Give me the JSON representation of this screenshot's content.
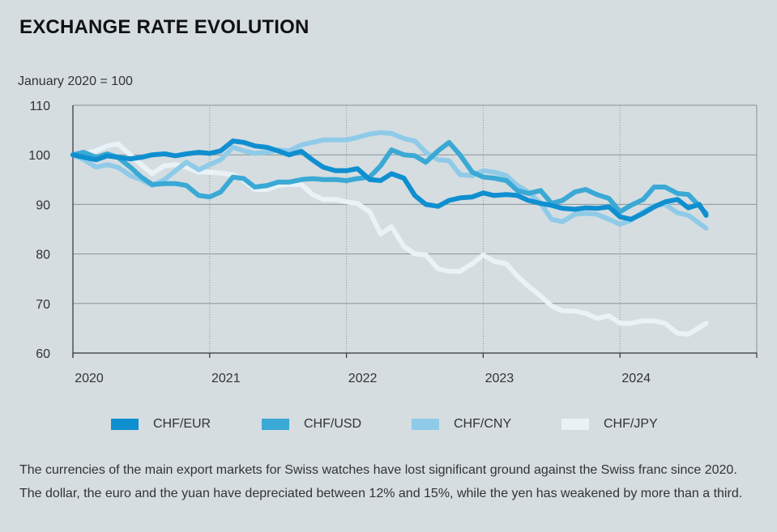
{
  "chart_data": {
    "type": "line",
    "title": "EXCHANGE RATE EVOLUTION",
    "ylabel": "January 2020 = 100",
    "xlabel": "",
    "xlim": [
      2020.0,
      2025.0
    ],
    "ylim": [
      60,
      110
    ],
    "yticks": [
      60,
      70,
      80,
      90,
      100,
      110
    ],
    "xticks": [
      {
        "value": 2020,
        "label": "2020"
      },
      {
        "value": 2021,
        "label": "2021"
      },
      {
        "value": 2022,
        "label": "2022"
      },
      {
        "value": 2023,
        "label": "2023"
      },
      {
        "value": 2024,
        "label": "2024"
      }
    ],
    "grid": true,
    "legend_position": "bottom",
    "series": [
      {
        "name": "CHF/EUR",
        "color": "#0f8fd0",
        "points": [
          [
            2020.0,
            100
          ],
          [
            2020.08,
            99.5
          ],
          [
            2020.17,
            99
          ],
          [
            2020.25,
            99.8
          ],
          [
            2020.33,
            99.5
          ],
          [
            2020.42,
            99.2
          ],
          [
            2020.5,
            99.5
          ],
          [
            2020.58,
            100
          ],
          [
            2020.67,
            100.2
          ],
          [
            2020.75,
            99.8
          ],
          [
            2020.83,
            100.2
          ],
          [
            2020.92,
            100.5
          ],
          [
            2021.0,
            100.3
          ],
          [
            2021.08,
            100.8
          ],
          [
            2021.17,
            102.8
          ],
          [
            2021.25,
            102.5
          ],
          [
            2021.33,
            101.8
          ],
          [
            2021.42,
            101.5
          ],
          [
            2021.5,
            100.8
          ],
          [
            2021.58,
            100
          ],
          [
            2021.67,
            100.7
          ],
          [
            2021.75,
            99
          ],
          [
            2021.83,
            97.5
          ],
          [
            2021.92,
            96.8
          ],
          [
            2022.0,
            96.8
          ],
          [
            2022.08,
            97.2
          ],
          [
            2022.17,
            95
          ],
          [
            2022.25,
            94.8
          ],
          [
            2022.33,
            96.2
          ],
          [
            2022.42,
            95.3
          ],
          [
            2022.5,
            91.8
          ],
          [
            2022.58,
            90
          ],
          [
            2022.67,
            89.6
          ],
          [
            2022.75,
            90.8
          ],
          [
            2022.83,
            91.3
          ],
          [
            2022.92,
            91.5
          ],
          [
            2023.0,
            92.3
          ],
          [
            2023.08,
            91.8
          ],
          [
            2023.17,
            92
          ],
          [
            2023.25,
            91.8
          ],
          [
            2023.33,
            90.8
          ],
          [
            2023.42,
            90.2
          ],
          [
            2023.5,
            89.8
          ],
          [
            2023.58,
            89.2
          ],
          [
            2023.67,
            89
          ],
          [
            2023.75,
            89.3
          ],
          [
            2023.83,
            89.2
          ],
          [
            2023.92,
            89.5
          ],
          [
            2024.0,
            87.5
          ],
          [
            2024.08,
            87
          ],
          [
            2024.17,
            88.2
          ],
          [
            2024.25,
            89.5
          ],
          [
            2024.33,
            90.5
          ],
          [
            2024.42,
            91
          ],
          [
            2024.5,
            89.3
          ],
          [
            2024.58,
            90
          ],
          [
            2024.63,
            87.8
          ]
        ]
      },
      {
        "name": "CHF/USD",
        "color": "#3aa9d5",
        "points": [
          [
            2020.0,
            100
          ],
          [
            2020.08,
            100.5
          ],
          [
            2020.17,
            99.5
          ],
          [
            2020.25,
            100.2
          ],
          [
            2020.33,
            99.5
          ],
          [
            2020.42,
            97.5
          ],
          [
            2020.5,
            95.5
          ],
          [
            2020.58,
            94
          ],
          [
            2020.67,
            94.2
          ],
          [
            2020.75,
            94.2
          ],
          [
            2020.83,
            93.8
          ],
          [
            2020.92,
            91.8
          ],
          [
            2021.0,
            91.5
          ],
          [
            2021.08,
            92.5
          ],
          [
            2021.17,
            95.5
          ],
          [
            2021.25,
            95.2
          ],
          [
            2021.33,
            93.5
          ],
          [
            2021.42,
            93.8
          ],
          [
            2021.5,
            94.5
          ],
          [
            2021.58,
            94.5
          ],
          [
            2021.67,
            95
          ],
          [
            2021.75,
            95.2
          ],
          [
            2021.83,
            95
          ],
          [
            2021.92,
            95
          ],
          [
            2022.0,
            94.8
          ],
          [
            2022.08,
            95.2
          ],
          [
            2022.17,
            95.5
          ],
          [
            2022.25,
            97.8
          ],
          [
            2022.33,
            101
          ],
          [
            2022.42,
            100
          ],
          [
            2022.5,
            99.8
          ],
          [
            2022.58,
            98.5
          ],
          [
            2022.67,
            100.8
          ],
          [
            2022.75,
            102.5
          ],
          [
            2022.83,
            100
          ],
          [
            2022.92,
            96.5
          ],
          [
            2023.0,
            95.5
          ],
          [
            2023.08,
            95.3
          ],
          [
            2023.17,
            94.8
          ],
          [
            2023.25,
            92.8
          ],
          [
            2023.33,
            92.2
          ],
          [
            2023.42,
            92.8
          ],
          [
            2023.5,
            90.2
          ],
          [
            2023.58,
            90.8
          ],
          [
            2023.67,
            92.5
          ],
          [
            2023.75,
            93
          ],
          [
            2023.83,
            92
          ],
          [
            2023.92,
            91.2
          ],
          [
            2024.0,
            88.5
          ],
          [
            2024.08,
            89.8
          ],
          [
            2024.17,
            91
          ],
          [
            2024.25,
            93.5
          ],
          [
            2024.33,
            93.5
          ],
          [
            2024.42,
            92.2
          ],
          [
            2024.5,
            92
          ],
          [
            2024.63,
            88.2
          ]
        ]
      },
      {
        "name": "CHF/CNY",
        "color": "#8fcbe8",
        "points": [
          [
            2020.0,
            100
          ],
          [
            2020.08,
            99
          ],
          [
            2020.17,
            97.5
          ],
          [
            2020.25,
            98
          ],
          [
            2020.33,
            97.5
          ],
          [
            2020.42,
            95.8
          ],
          [
            2020.5,
            95
          ],
          [
            2020.58,
            93.8
          ],
          [
            2020.67,
            95
          ],
          [
            2020.75,
            96.8
          ],
          [
            2020.83,
            98.5
          ],
          [
            2020.92,
            97
          ],
          [
            2021.0,
            98
          ],
          [
            2021.08,
            99
          ],
          [
            2021.17,
            101.5
          ],
          [
            2021.25,
            100.8
          ],
          [
            2021.33,
            100.3
          ],
          [
            2021.42,
            100.5
          ],
          [
            2021.5,
            101
          ],
          [
            2021.58,
            100.8
          ],
          [
            2021.67,
            102
          ],
          [
            2021.75,
            102.5
          ],
          [
            2021.83,
            103
          ],
          [
            2021.92,
            103
          ],
          [
            2022.0,
            103
          ],
          [
            2022.08,
            103.5
          ],
          [
            2022.17,
            104.2
          ],
          [
            2022.25,
            104.5
          ],
          [
            2022.33,
            104.3
          ],
          [
            2022.42,
            103.3
          ],
          [
            2022.5,
            102.8
          ],
          [
            2022.58,
            100.5
          ],
          [
            2022.67,
            99
          ],
          [
            2022.75,
            98.8
          ],
          [
            2022.83,
            96
          ],
          [
            2022.92,
            95.8
          ],
          [
            2023.0,
            96.8
          ],
          [
            2023.08,
            96.5
          ],
          [
            2023.17,
            95.8
          ],
          [
            2023.25,
            93.8
          ],
          [
            2023.33,
            92.5
          ],
          [
            2023.42,
            90.2
          ],
          [
            2023.5,
            87
          ],
          [
            2023.58,
            86.5
          ],
          [
            2023.67,
            88
          ],
          [
            2023.75,
            88.2
          ],
          [
            2023.83,
            88
          ],
          [
            2023.92,
            87
          ],
          [
            2024.0,
            86
          ],
          [
            2024.08,
            86.8
          ],
          [
            2024.17,
            88.5
          ],
          [
            2024.25,
            89.8
          ],
          [
            2024.33,
            90
          ],
          [
            2024.42,
            88.3
          ],
          [
            2024.5,
            87.8
          ],
          [
            2024.63,
            85.2
          ]
        ]
      },
      {
        "name": "CHF/JPY",
        "color": "#e8f2f7",
        "points": [
          [
            2020.0,
            100
          ],
          [
            2020.08,
            100.2
          ],
          [
            2020.17,
            100.8
          ],
          [
            2020.25,
            101.8
          ],
          [
            2020.33,
            102.2
          ],
          [
            2020.42,
            100
          ],
          [
            2020.5,
            98
          ],
          [
            2020.58,
            96.2
          ],
          [
            2020.67,
            97.8
          ],
          [
            2020.75,
            98
          ],
          [
            2020.83,
            97.5
          ],
          [
            2020.92,
            96.5
          ],
          [
            2021.0,
            96.5
          ],
          [
            2021.08,
            96.3
          ],
          [
            2021.17,
            96
          ],
          [
            2021.25,
            94.8
          ],
          [
            2021.33,
            93
          ],
          [
            2021.42,
            93
          ],
          [
            2021.5,
            93.8
          ],
          [
            2021.58,
            94
          ],
          [
            2021.67,
            94
          ],
          [
            2021.75,
            92
          ],
          [
            2021.83,
            91
          ],
          [
            2021.92,
            91
          ],
          [
            2022.0,
            90.5
          ],
          [
            2022.08,
            90.2
          ],
          [
            2022.17,
            88.5
          ],
          [
            2022.25,
            84
          ],
          [
            2022.33,
            85.5
          ],
          [
            2022.42,
            81.5
          ],
          [
            2022.5,
            80
          ],
          [
            2022.58,
            79.8
          ],
          [
            2022.67,
            77
          ],
          [
            2022.75,
            76.5
          ],
          [
            2022.83,
            76.5
          ],
          [
            2022.92,
            78
          ],
          [
            2023.0,
            79.8
          ],
          [
            2023.08,
            78.5
          ],
          [
            2023.17,
            78
          ],
          [
            2023.25,
            75.5
          ],
          [
            2023.33,
            73.5
          ],
          [
            2023.42,
            71.5
          ],
          [
            2023.5,
            69.5
          ],
          [
            2023.58,
            68.5
          ],
          [
            2023.67,
            68.5
          ],
          [
            2023.75,
            68
          ],
          [
            2023.83,
            67
          ],
          [
            2023.92,
            67.5
          ],
          [
            2024.0,
            66
          ],
          [
            2024.08,
            66
          ],
          [
            2024.17,
            66.5
          ],
          [
            2024.25,
            66.5
          ],
          [
            2024.33,
            66
          ],
          [
            2024.42,
            64
          ],
          [
            2024.5,
            63.8
          ],
          [
            2024.63,
            66
          ]
        ]
      }
    ]
  },
  "caption": "The currencies of the main export markets for Swiss watches have lost significant ground against the Swiss franc since 2020. The dollar, the euro and the yuan have depreciated between 12% and 15%, while the yen has weakened by more than a third."
}
